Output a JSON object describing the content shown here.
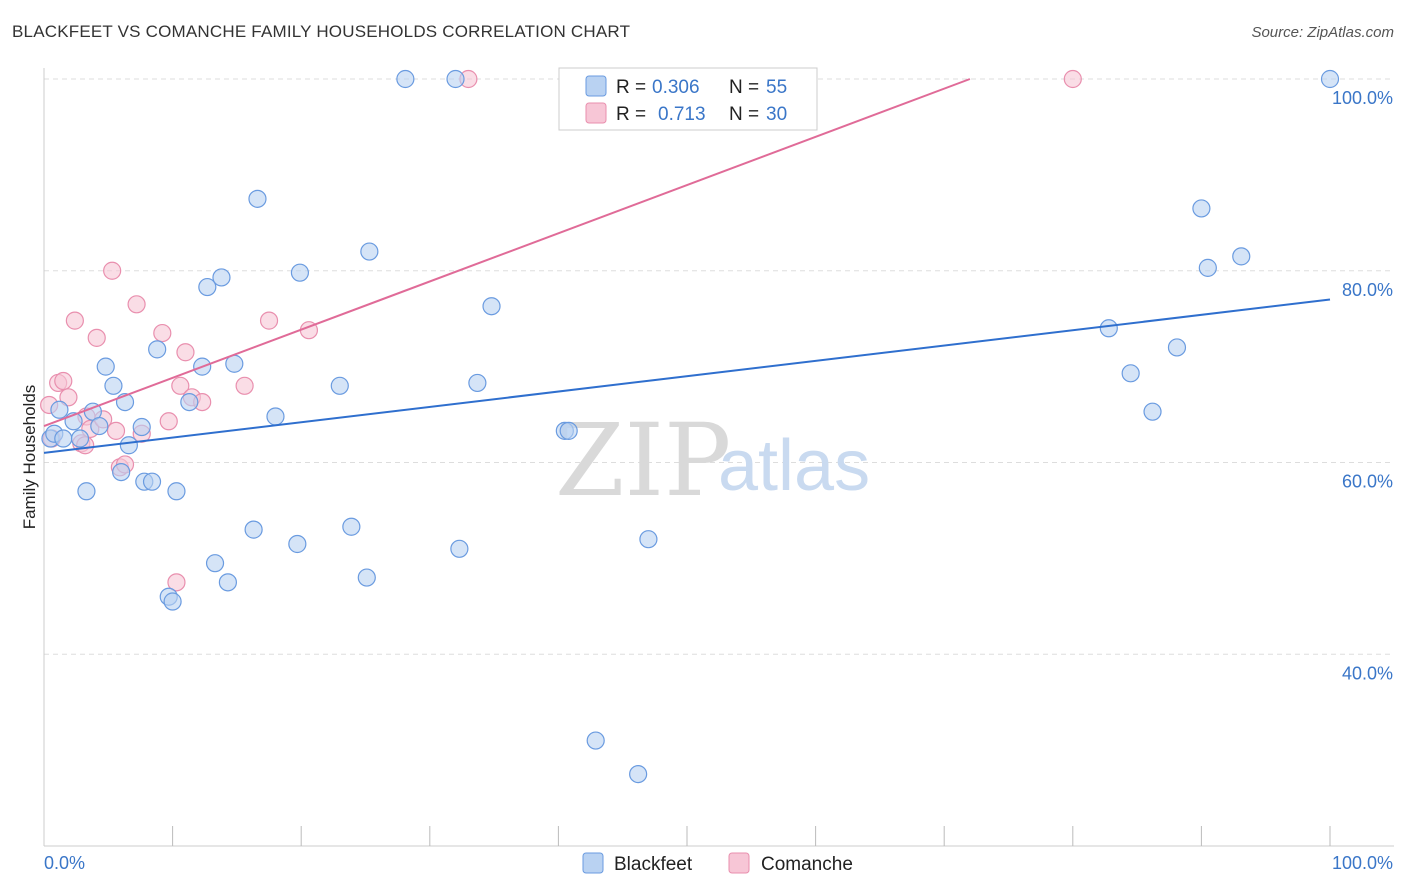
{
  "title": "BLACKFEET VS COMANCHE FAMILY HOUSEHOLDS CORRELATION CHART",
  "source": "Source: ZipAtlas.com",
  "watermark": {
    "zip": "ZIP",
    "atlas": "atlas"
  },
  "legend": {
    "r_label": "R =",
    "n_label": "N =",
    "blackfeet": {
      "r": "0.306",
      "n": "55"
    },
    "comanche": {
      "r": "0.713",
      "n": "30"
    }
  },
  "colors": {
    "blackfeet_fill": "#b9d2f2",
    "blackfeet_stroke": "#6a9be0",
    "blackfeet_line": "#2f6fce",
    "comanche_fill": "#f7c6d6",
    "comanche_stroke": "#e98fae",
    "comanche_line": "#e06b98",
    "tick_label": "#3a76c8",
    "grid": "#dddddd"
  },
  "chart_data": {
    "type": "scatter",
    "xlabel": "",
    "ylabel": "Family Households",
    "xlim": [
      0,
      100
    ],
    "ylim": [
      20,
      100
    ],
    "x_tick_labels": [
      "0.0%",
      "100.0%"
    ],
    "y_ticks": [
      40,
      60,
      80,
      100
    ],
    "y_tick_labels": [
      "40.0%",
      "60.0%",
      "80.0%",
      "100.0%"
    ],
    "grid": true,
    "series": [
      {
        "name": "Blackfeet",
        "trend": {
          "x": [
            0,
            100
          ],
          "y": [
            61.0,
            77.0
          ]
        },
        "points": [
          [
            0.5,
            62.5
          ],
          [
            0.8,
            63.0
          ],
          [
            1.2,
            65.5
          ],
          [
            1.5,
            62.5
          ],
          [
            2.3,
            64.3
          ],
          [
            3.3,
            57.0
          ],
          [
            3.8,
            65.3
          ],
          [
            4.3,
            63.8
          ],
          [
            4.8,
            70.0
          ],
          [
            5.4,
            68.0
          ],
          [
            6.3,
            66.3
          ],
          [
            6.6,
            61.8
          ],
          [
            7.6,
            63.7
          ],
          [
            7.8,
            58.0
          ],
          [
            8.4,
            58.0
          ],
          [
            8.8,
            71.8
          ],
          [
            9.7,
            46.0
          ],
          [
            10.0,
            45.5
          ],
          [
            10.3,
            57.0
          ],
          [
            11.3,
            66.3
          ],
          [
            12.3,
            70.0
          ],
          [
            12.7,
            78.3
          ],
          [
            13.3,
            49.5
          ],
          [
            13.8,
            79.3
          ],
          [
            14.3,
            47.5
          ],
          [
            14.8,
            70.3
          ],
          [
            16.3,
            53.0
          ],
          [
            16.6,
            87.5
          ],
          [
            18.0,
            64.8
          ],
          [
            19.7,
            51.5
          ],
          [
            19.9,
            79.8
          ],
          [
            23.0,
            68.0
          ],
          [
            23.9,
            53.3
          ],
          [
            25.1,
            48.0
          ],
          [
            25.3,
            82.0
          ],
          [
            28.1,
            100.0
          ],
          [
            32.0,
            100.0
          ],
          [
            32.3,
            51.0
          ],
          [
            33.7,
            68.3
          ],
          [
            34.8,
            76.3
          ],
          [
            40.5,
            63.3
          ],
          [
            40.8,
            63.3
          ],
          [
            42.9,
            31.0
          ],
          [
            46.2,
            27.5
          ],
          [
            47.0,
            52.0
          ],
          [
            82.8,
            74.0
          ],
          [
            84.5,
            69.3
          ],
          [
            86.2,
            65.3
          ],
          [
            88.1,
            72.0
          ],
          [
            90.0,
            86.5
          ],
          [
            90.5,
            80.3
          ],
          [
            93.1,
            81.5
          ],
          [
            100.0,
            100.0
          ],
          [
            6.0,
            59.0
          ],
          [
            2.8,
            62.5
          ]
        ]
      },
      {
        "name": "Comanche",
        "trend": {
          "x": [
            0,
            72.0
          ],
          "y": [
            63.8,
            100.0
          ]
        },
        "points": [
          [
            0.4,
            66.0
          ],
          [
            0.6,
            62.5
          ],
          [
            1.1,
            68.3
          ],
          [
            1.5,
            68.5
          ],
          [
            1.9,
            66.8
          ],
          [
            2.4,
            74.8
          ],
          [
            2.9,
            62.0
          ],
          [
            3.3,
            64.8
          ],
          [
            3.6,
            63.5
          ],
          [
            4.1,
            73.0
          ],
          [
            4.6,
            64.5
          ],
          [
            5.3,
            80.0
          ],
          [
            5.6,
            63.3
          ],
          [
            5.9,
            59.5
          ],
          [
            6.3,
            59.8
          ],
          [
            7.2,
            76.5
          ],
          [
            7.6,
            63.0
          ],
          [
            9.2,
            73.5
          ],
          [
            9.7,
            64.3
          ],
          [
            10.3,
            47.5
          ],
          [
            10.6,
            68.0
          ],
          [
            11.0,
            71.5
          ],
          [
            11.5,
            66.8
          ],
          [
            12.3,
            66.3
          ],
          [
            15.6,
            68.0
          ],
          [
            17.5,
            74.8
          ],
          [
            20.6,
            73.8
          ],
          [
            33.0,
            100.0
          ],
          [
            80.0,
            100.0
          ],
          [
            3.2,
            61.8
          ]
        ]
      }
    ]
  }
}
